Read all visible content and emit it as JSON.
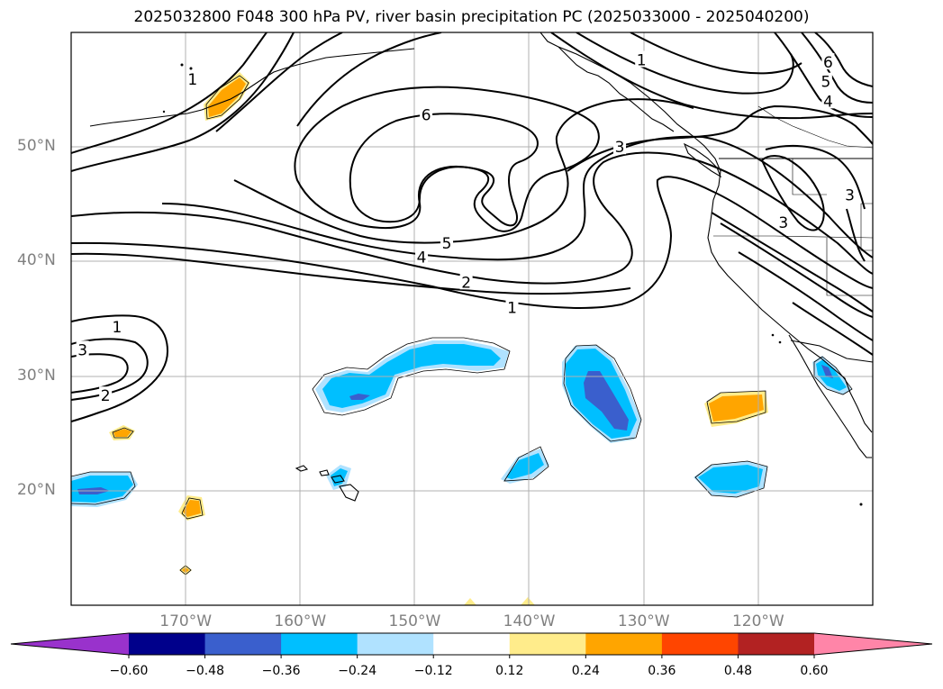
{
  "title": "2025032800 F048 300 hPa PV, river basin precipitation PC (2025033000 - 2025040200)",
  "map": {
    "projection": "PlateCarree",
    "extent": {
      "lon_min": -180,
      "lon_max": -110,
      "lat_min": 10,
      "lat_max": 60
    },
    "gridlines": true,
    "lat_labels": [
      {
        "value": 20,
        "text": "20°N"
      },
      {
        "value": 30,
        "text": "30°N"
      },
      {
        "value": 40,
        "text": "40°N"
      },
      {
        "value": 50,
        "text": "50°N"
      }
    ],
    "lon_labels": [
      {
        "value": -170,
        "text": "170°W"
      },
      {
        "value": -160,
        "text": "160°W"
      },
      {
        "value": -150,
        "text": "150°W"
      },
      {
        "value": -140,
        "text": "140°W"
      },
      {
        "value": -130,
        "text": "130°W"
      },
      {
        "value": -120,
        "text": "120°W"
      }
    ],
    "pv_contour_labels": [
      {
        "text": "1",
        "lon": -176,
        "lat": 34.3
      },
      {
        "text": "3",
        "lon": -179,
        "lat": 32.3
      },
      {
        "text": "2",
        "lon": -177,
        "lat": 28.3
      },
      {
        "text": "6",
        "lon": -149,
        "lat": 52.8
      },
      {
        "text": "5",
        "lon": -147.2,
        "lat": 41.6
      },
      {
        "text": "4",
        "lon": -149.4,
        "lat": 40.4
      },
      {
        "text": "2",
        "lon": -145.5,
        "lat": 38.2
      },
      {
        "text": "1",
        "lon": -141.5,
        "lat": 36.0
      },
      {
        "text": "3",
        "lon": -132.1,
        "lat": 50.0
      },
      {
        "text": "1",
        "lon": -130.2,
        "lat": 57.6
      },
      {
        "text": "6",
        "lon": -113.9,
        "lat": 57.4
      },
      {
        "text": "5",
        "lon": -114.1,
        "lat": 55.7
      },
      {
        "text": "4",
        "lon": -113.9,
        "lat": 54.0
      },
      {
        "text": "3",
        "lon": -112.0,
        "lat": 45.8
      },
      {
        "text": "3",
        "lon": -117.8,
        "lat": 43.4
      },
      {
        "text": "1",
        "lon": -169.4,
        "lat": 55.9
      }
    ],
    "pc_anomalies": [
      {
        "sign": "negative",
        "lon": -149,
        "lat": 29.8,
        "level": "-0.36"
      },
      {
        "sign": "negative",
        "lon": -133,
        "lat": 29.3,
        "level": "-0.48"
      },
      {
        "sign": "negative",
        "lon": -177,
        "lat": 20.0,
        "level": "-0.36"
      },
      {
        "sign": "negative",
        "lon": -121,
        "lat": 20.8,
        "level": "-0.36"
      },
      {
        "sign": "negative",
        "lon": -140.5,
        "lat": 21.9,
        "level": "-0.36"
      },
      {
        "sign": "negative",
        "lon": -115.4,
        "lat": 30.0,
        "level": "-0.36"
      },
      {
        "sign": "positive",
        "lon": -121.8,
        "lat": 27.1,
        "level": "0.24"
      },
      {
        "sign": "positive",
        "lon": -166.5,
        "lat": 54.5,
        "level": "0.24"
      },
      {
        "sign": "positive",
        "lon": -169.4,
        "lat": 18.4,
        "level": "0.24"
      },
      {
        "sign": "positive",
        "lon": -175.6,
        "lat": 25.0,
        "level": "0.24"
      }
    ]
  },
  "colorbar": {
    "tick_labels": [
      "−0.60",
      "−0.48",
      "−0.36",
      "−0.24",
      "−0.12",
      "0.12",
      "0.24",
      "0.36",
      "0.48",
      "0.60"
    ],
    "colors": [
      "#9932cc",
      "#00008b",
      "#3a5fcd",
      "#00bfff",
      "#b0e2ff",
      "#ffffff",
      "#ffec8b",
      "#ffa500",
      "#ff4500",
      "#b22222",
      "#ff85a8"
    ]
  }
}
